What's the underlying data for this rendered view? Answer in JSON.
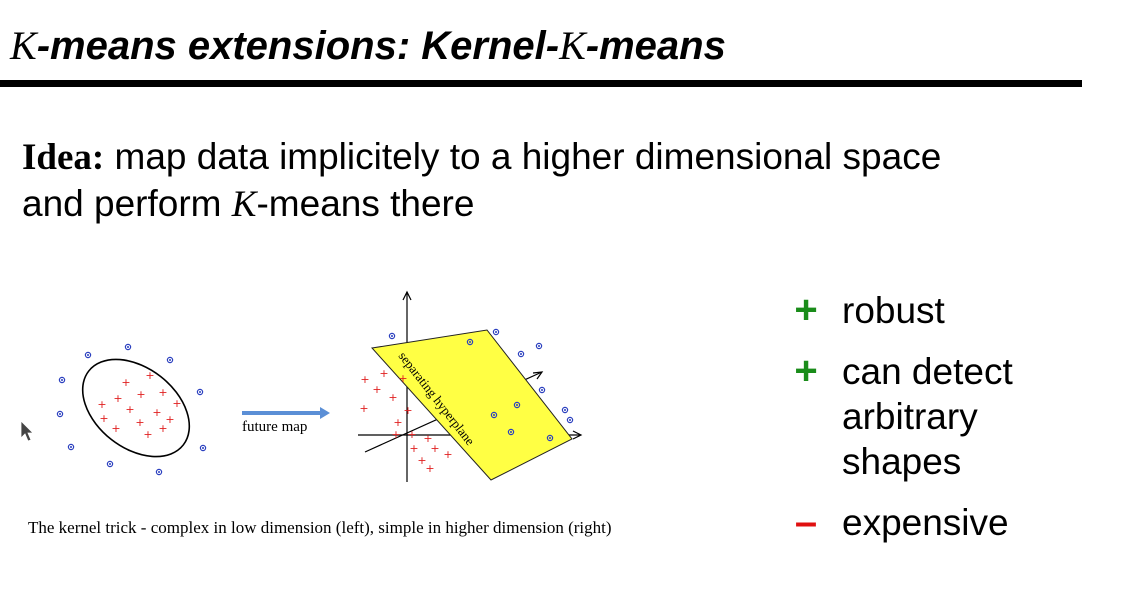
{
  "slide": {
    "title_k1": "K",
    "title_mid": "-means extensions: Kernel-",
    "title_k2": "K",
    "title_end": "-means",
    "idea_label": "Idea:",
    "idea_line1": " map data implicitely to a higher dimensional space",
    "idea_line2a": "and perform ",
    "idea_k": "K",
    "idea_line2b": "-means there"
  },
  "figure": {
    "map_label": "future map",
    "plane_label": "separating hyperplane",
    "caption": "The kernel trick - complex in low dimension (left), simple in higher dimension (right)",
    "colors": {
      "plus": "#e02020",
      "dot": "#2a3fbf",
      "plane": "#ffff44",
      "arrow": "#5b8fd6"
    }
  },
  "bullets": [
    {
      "symbol": "+",
      "text": "robust",
      "color": "#1a8c1a"
    },
    {
      "symbol": "+",
      "text": "can detect arbitrary shapes",
      "lines": [
        "can detect",
        "arbitrary",
        "shapes"
      ],
      "color": "#1a8c1a"
    },
    {
      "symbol": "–",
      "text": "expensive",
      "color": "#e01010"
    }
  ]
}
